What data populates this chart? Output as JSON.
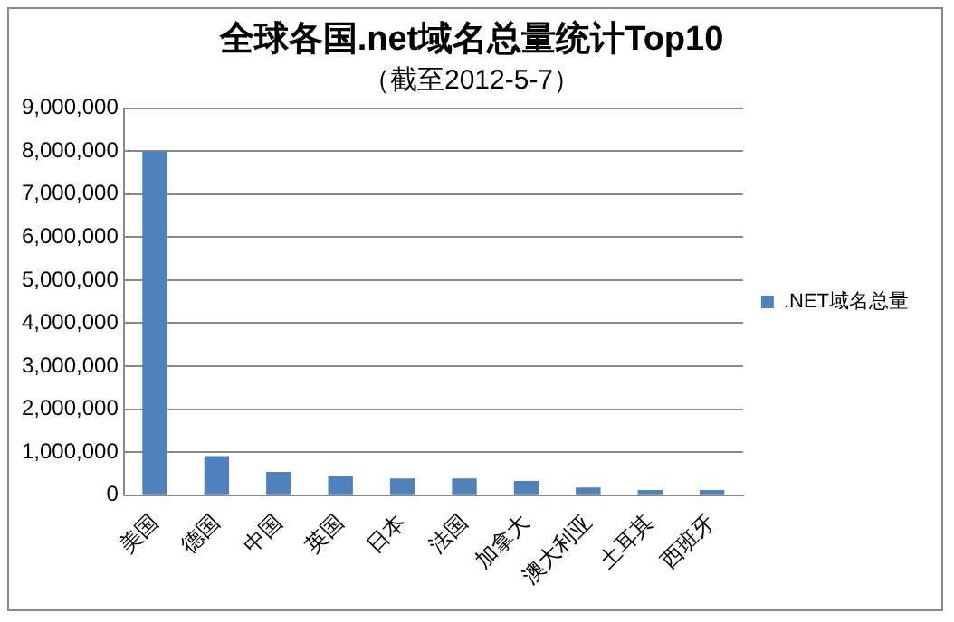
{
  "chart_data": {
    "type": "bar",
    "title": "全球各国.net域名总量统计Top10",
    "subtitle": "（截至2012-5-7）",
    "categories": [
      "美国",
      "德国",
      "中国",
      "英国",
      "日本",
      "法国",
      "加拿大",
      "澳大利亚",
      "土耳其",
      "西班牙"
    ],
    "series": [
      {
        "name": ".NET域名总量",
        "color": "#4f81bd",
        "values": [
          8000000,
          910000,
          540000,
          440000,
          390000,
          390000,
          330000,
          180000,
          120000,
          120000
        ]
      }
    ],
    "ylim": [
      0,
      9000000
    ],
    "yticks": [
      0,
      {
        "value": 1000000,
        "label": "1,000,000"
      },
      {
        "value": 2000000,
        "label": "2,000,000"
      },
      {
        "value": 3000000,
        "label": "3,000,000"
      },
      {
        "value": 4000000,
        "label": "4,000,000"
      },
      {
        "value": 5000000,
        "label": "5,000,000"
      },
      {
        "value": 6000000,
        "label": "6,000,000"
      },
      {
        "value": 7000000,
        "label": "7,000,000"
      },
      {
        "value": 8000000,
        "label": "8,000,000"
      },
      {
        "value": 9000000,
        "label": "9,000,000"
      }
    ],
    "grid": "y",
    "legend": "right"
  }
}
